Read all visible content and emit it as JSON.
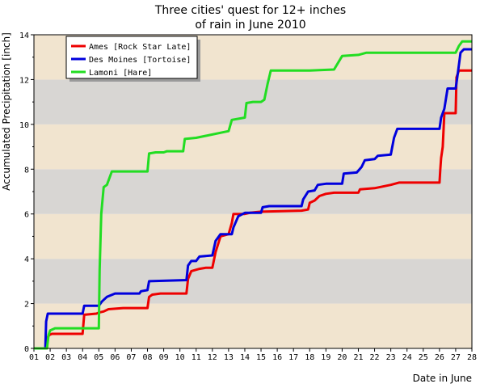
{
  "chart_data": {
    "type": "line",
    "title_lines": [
      "Three cities' quest for 12+ inches",
      "of rain in June 2010"
    ],
    "xlabel": "Date in June",
    "ylabel": "Accumulated Precipitation [inch]",
    "xlim": [
      1,
      28
    ],
    "ylim": [
      0,
      14
    ],
    "x_ticks": [
      "01",
      "02",
      "03",
      "04",
      "05",
      "06",
      "07",
      "08",
      "09",
      "10",
      "11",
      "12",
      "13",
      "14",
      "15",
      "16",
      "17",
      "18",
      "19",
      "20",
      "21",
      "22",
      "23",
      "24",
      "25",
      "26",
      "27",
      "28"
    ],
    "y_ticks": [
      0,
      2,
      4,
      6,
      8,
      10,
      12,
      14
    ],
    "bands": {
      "colors": [
        "#f1e4cf",
        "#d8d6d3"
      ],
      "band_height": 2
    },
    "legend": {
      "position": "top-left"
    },
    "series": [
      {
        "name": "Ames [Rock Star Late]",
        "color": "#ee0000",
        "points": [
          [
            1,
            0
          ],
          [
            1.8,
            0
          ],
          [
            1.85,
            0.5
          ],
          [
            1.95,
            0.6
          ],
          [
            2.1,
            0.65
          ],
          [
            4,
            0.65
          ],
          [
            4.1,
            1.5
          ],
          [
            4.85,
            1.55
          ],
          [
            5,
            1.6
          ],
          [
            5.3,
            1.65
          ],
          [
            5.6,
            1.75
          ],
          [
            6.5,
            1.8
          ],
          [
            8,
            1.8
          ],
          [
            8.1,
            2.3
          ],
          [
            8.3,
            2.4
          ],
          [
            8.8,
            2.45
          ],
          [
            10.4,
            2.45
          ],
          [
            10.5,
            3.1
          ],
          [
            10.7,
            3.45
          ],
          [
            11.2,
            3.55
          ],
          [
            11.6,
            3.6
          ],
          [
            12,
            3.6
          ],
          [
            12.2,
            4.3
          ],
          [
            12.5,
            5
          ],
          [
            13,
            5.1
          ],
          [
            13.2,
            5.6
          ],
          [
            13.3,
            6
          ],
          [
            14,
            6
          ],
          [
            14.3,
            6.05
          ],
          [
            15,
            6.1
          ],
          [
            17.5,
            6.15
          ],
          [
            17.9,
            6.2
          ],
          [
            18,
            6.5
          ],
          [
            18.3,
            6.6
          ],
          [
            18.6,
            6.8
          ],
          [
            19,
            6.9
          ],
          [
            19.5,
            6.95
          ],
          [
            21,
            6.95
          ],
          [
            21.1,
            7.1
          ],
          [
            22,
            7.15
          ],
          [
            23,
            7.3
          ],
          [
            23.5,
            7.4
          ],
          [
            26,
            7.4
          ],
          [
            26.05,
            8
          ],
          [
            26.1,
            8.5
          ],
          [
            26.2,
            9
          ],
          [
            26.3,
            10.5
          ],
          [
            27,
            10.5
          ],
          [
            27.05,
            12.1
          ],
          [
            27.2,
            12.4
          ],
          [
            28,
            12.4
          ]
        ]
      },
      {
        "name": "Des Moines [Tortoise]",
        "color": "#0000dd",
        "points": [
          [
            1,
            0
          ],
          [
            1.7,
            0
          ],
          [
            1.75,
            1.2
          ],
          [
            1.85,
            1.55
          ],
          [
            4,
            1.55
          ],
          [
            4.1,
            1.9
          ],
          [
            5,
            1.9
          ],
          [
            5.2,
            2.1
          ],
          [
            5.5,
            2.3
          ],
          [
            6,
            2.45
          ],
          [
            7.5,
            2.45
          ],
          [
            7.6,
            2.55
          ],
          [
            8,
            2.6
          ],
          [
            8.1,
            3
          ],
          [
            10.4,
            3.05
          ],
          [
            10.5,
            3.7
          ],
          [
            10.7,
            3.9
          ],
          [
            11,
            3.9
          ],
          [
            11.2,
            4.1
          ],
          [
            12,
            4.15
          ],
          [
            12.2,
            4.8
          ],
          [
            12.5,
            5.1
          ],
          [
            13.2,
            5.1
          ],
          [
            13.3,
            5.4
          ],
          [
            13.6,
            5.9
          ],
          [
            14,
            6.05
          ],
          [
            15,
            6.05
          ],
          [
            15.1,
            6.3
          ],
          [
            15.5,
            6.35
          ],
          [
            17.5,
            6.35
          ],
          [
            17.6,
            6.65
          ],
          [
            17.9,
            7
          ],
          [
            18.3,
            7.05
          ],
          [
            18.5,
            7.3
          ],
          [
            19,
            7.35
          ],
          [
            20,
            7.35
          ],
          [
            20.1,
            7.8
          ],
          [
            20.9,
            7.85
          ],
          [
            21.2,
            8.1
          ],
          [
            21.4,
            8.4
          ],
          [
            22,
            8.45
          ],
          [
            22.2,
            8.6
          ],
          [
            23,
            8.65
          ],
          [
            23.2,
            9.4
          ],
          [
            23.4,
            9.8
          ],
          [
            26,
            9.8
          ],
          [
            26.1,
            10.3
          ],
          [
            26.3,
            10.7
          ],
          [
            26.5,
            11.6
          ],
          [
            27,
            11.6
          ],
          [
            27.1,
            12.1
          ],
          [
            27.3,
            13.2
          ],
          [
            27.5,
            13.35
          ],
          [
            28,
            13.35
          ]
        ]
      },
      {
        "name": "Lamoni [Hare]",
        "color": "#22dd22",
        "points": [
          [
            1,
            0
          ],
          [
            1.8,
            0
          ],
          [
            1.9,
            0.6
          ],
          [
            2,
            0.8
          ],
          [
            2.3,
            0.9
          ],
          [
            5,
            0.9
          ],
          [
            5.05,
            3.5
          ],
          [
            5.15,
            6
          ],
          [
            5.3,
            7.2
          ],
          [
            5.5,
            7.3
          ],
          [
            5.8,
            7.9
          ],
          [
            8,
            7.9
          ],
          [
            8.1,
            8.7
          ],
          [
            8.5,
            8.75
          ],
          [
            9,
            8.75
          ],
          [
            9.2,
            8.8
          ],
          [
            10.2,
            8.8
          ],
          [
            10.3,
            9.35
          ],
          [
            11,
            9.4
          ],
          [
            13,
            9.7
          ],
          [
            13.2,
            10.2
          ],
          [
            14,
            10.3
          ],
          [
            14.1,
            10.95
          ],
          [
            14.5,
            11
          ],
          [
            15,
            11
          ],
          [
            15.2,
            11.1
          ],
          [
            15.4,
            11.8
          ],
          [
            15.6,
            12.4
          ],
          [
            18,
            12.4
          ],
          [
            19.5,
            12.45
          ],
          [
            20,
            13.05
          ],
          [
            21,
            13.1
          ],
          [
            21.5,
            13.2
          ],
          [
            27,
            13.2
          ],
          [
            27.2,
            13.5
          ],
          [
            27.4,
            13.7
          ],
          [
            28,
            13.7
          ]
        ]
      }
    ]
  }
}
